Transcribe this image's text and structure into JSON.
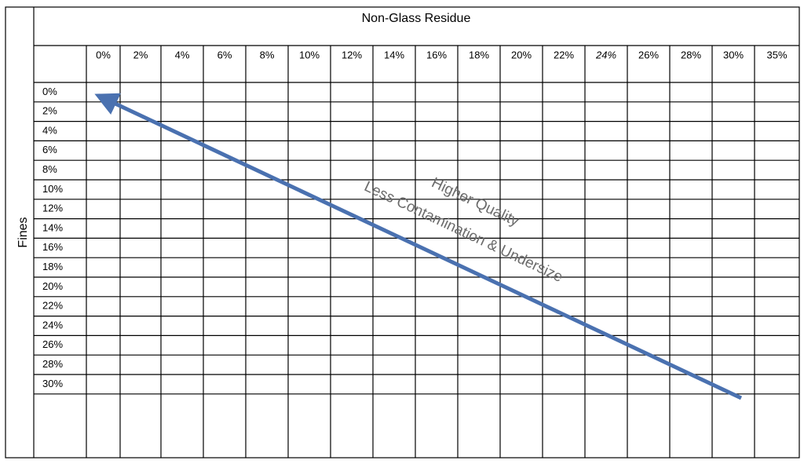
{
  "header": {
    "title": "Non-Glass Residue"
  },
  "row_axis_label": "Fines",
  "columns": [
    "0%",
    "2%",
    "4%",
    "6%",
    "8%",
    "10%",
    "12%",
    "14%",
    "16%",
    "18%",
    "20%",
    "22%",
    "24%",
    "26%",
    "28%",
    "30%",
    "35%"
  ],
  "rows": [
    "0%",
    "2%",
    "4%",
    "6%",
    "8%",
    "10%",
    "12%",
    "14%",
    "16%",
    "18%",
    "20%",
    "22%",
    "24%",
    "26%",
    "28%",
    "30%"
  ],
  "annotation": {
    "line1": "Higher Quality",
    "line2": "Less Contamination & Undersize"
  }
}
